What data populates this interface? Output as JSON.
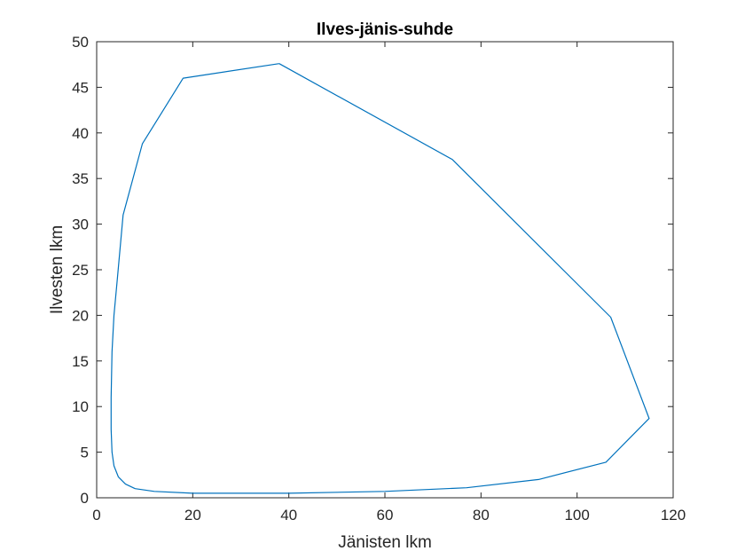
{
  "chart_data": {
    "type": "line",
    "title": "Ilves-jänis-suhde",
    "xlabel": "Jänisten lkm",
    "ylabel": "Ilvesten lkm",
    "xlim": [
      0,
      120
    ],
    "ylim": [
      0,
      50
    ],
    "xticks": [
      0,
      20,
      40,
      60,
      80,
      100,
      120
    ],
    "yticks": [
      0,
      5,
      10,
      15,
      20,
      25,
      30,
      35,
      40,
      45,
      50
    ],
    "xtick_labels": [
      "0",
      "20",
      "40",
      "60",
      "80",
      "100",
      "120"
    ],
    "ytick_labels": [
      "0",
      "5",
      "10",
      "15",
      "20",
      "25",
      "30",
      "35",
      "40",
      "45",
      "50"
    ],
    "grid": false,
    "box": true,
    "line_color": "#0072bd",
    "series": [
      {
        "x": [
          38,
          74,
          107,
          115,
          106,
          92,
          77,
          60,
          40,
          20,
          12,
          8,
          6,
          4.5,
          3.6,
          3.2,
          3.0,
          3.0,
          3.2,
          3.6,
          4.3,
          5.5,
          9.5,
          18,
          38
        ],
        "y": [
          47.6,
          37.1,
          19.8,
          8.7,
          3.9,
          2.0,
          1.1,
          0.7,
          0.5,
          0.5,
          0.7,
          1.0,
          1.5,
          2.3,
          3.5,
          5.0,
          7.5,
          11.0,
          16.0,
          20.0,
          24.0,
          31.0,
          38.8,
          46.0,
          47.6
        ]
      }
    ]
  }
}
